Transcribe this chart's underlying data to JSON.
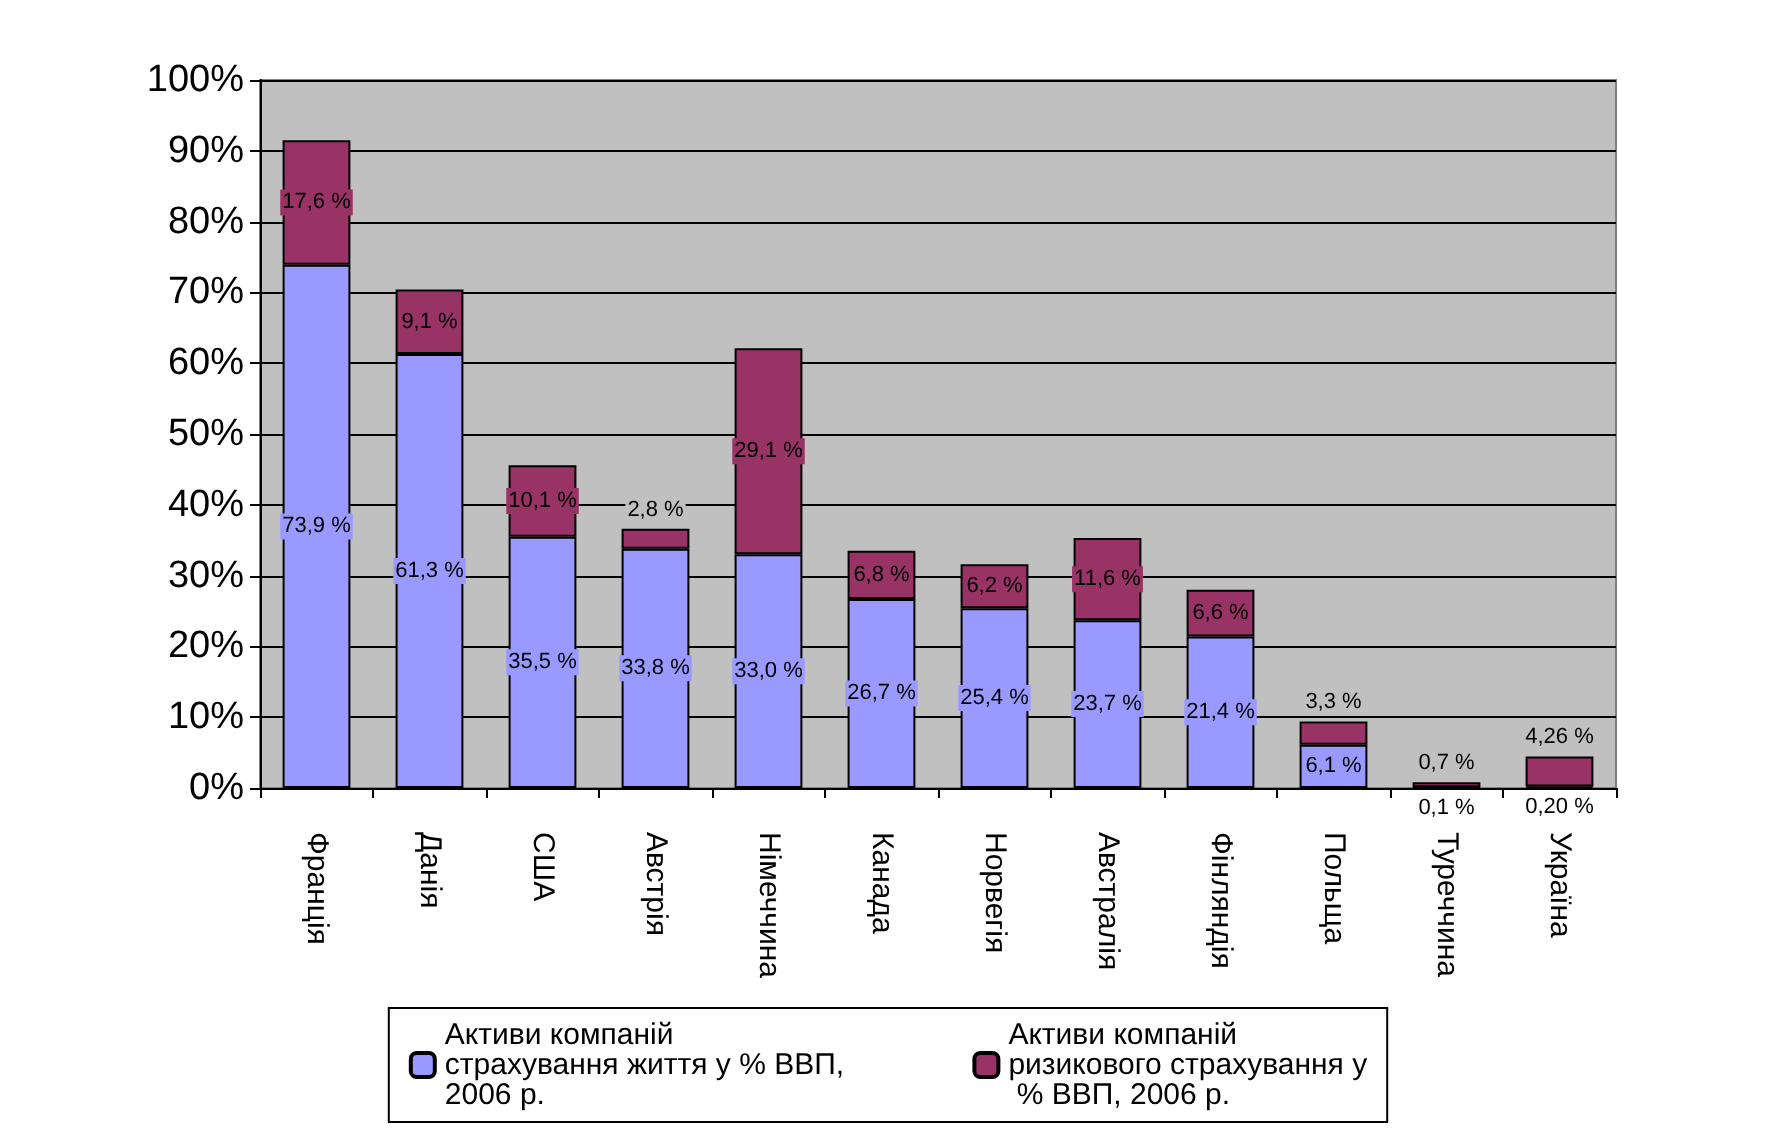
{
  "chart_data": {
    "type": "bar",
    "stacked": true,
    "categories": [
      "Франція",
      "Данія",
      "США",
      "Австрія",
      "Німеччина",
      "Канада",
      "Норвегія",
      "Австралія",
      "Фінляндія",
      "Польща",
      "Туреччина",
      "Україна"
    ],
    "series": [
      {
        "name": "Активи компаній страхування життя у % ВВП, 2006 р.",
        "color": "#9999ff",
        "values": [
          73.9,
          61.3,
          35.5,
          33.8,
          33.0,
          26.7,
          25.4,
          23.7,
          21.4,
          6.1,
          0.1,
          0.2
        ],
        "value_labels": [
          "73,9 %",
          "61,3 %",
          "35,5 %",
          "33,8 %",
          "33,0 %",
          "26,7 %",
          "25,4 %",
          "23,7 %",
          "21,4 %",
          "6,1 %",
          "0,1 %",
          "0,20 %"
        ]
      },
      {
        "name": "Активи компаній ризикового страхування у % ВВП, 2006 р.",
        "color": "#993366",
        "values": [
          17.6,
          9.1,
          10.1,
          2.8,
          29.1,
          6.8,
          6.2,
          11.6,
          6.6,
          3.3,
          0.7,
          4.26
        ],
        "value_labels": [
          "17,6 %",
          "9,1 %",
          "10,1 %",
          "2,8 %",
          "29,1 %",
          "6,8 %",
          "6,2 %",
          "11,6 %",
          "6,6 %",
          "3,3 %",
          "0,7 %",
          "4,26 %"
        ]
      }
    ],
    "ylim": [
      0,
      100
    ],
    "yticks": [
      {
        "value": 0,
        "label": "0%"
      },
      {
        "value": 10,
        "label": "10%"
      },
      {
        "value": 20,
        "label": "20%"
      },
      {
        "value": 30,
        "label": "30%"
      },
      {
        "value": 40,
        "label": "40%"
      },
      {
        "value": 50,
        "label": "50%"
      },
      {
        "value": 60,
        "label": "60%"
      },
      {
        "value": 70,
        "label": "70%"
      },
      {
        "value": 80,
        "label": "80%"
      },
      {
        "value": 90,
        "label": "90%"
      },
      {
        "value": 100,
        "label": "100%"
      }
    ],
    "grid": "y",
    "legend": "bottom"
  }
}
